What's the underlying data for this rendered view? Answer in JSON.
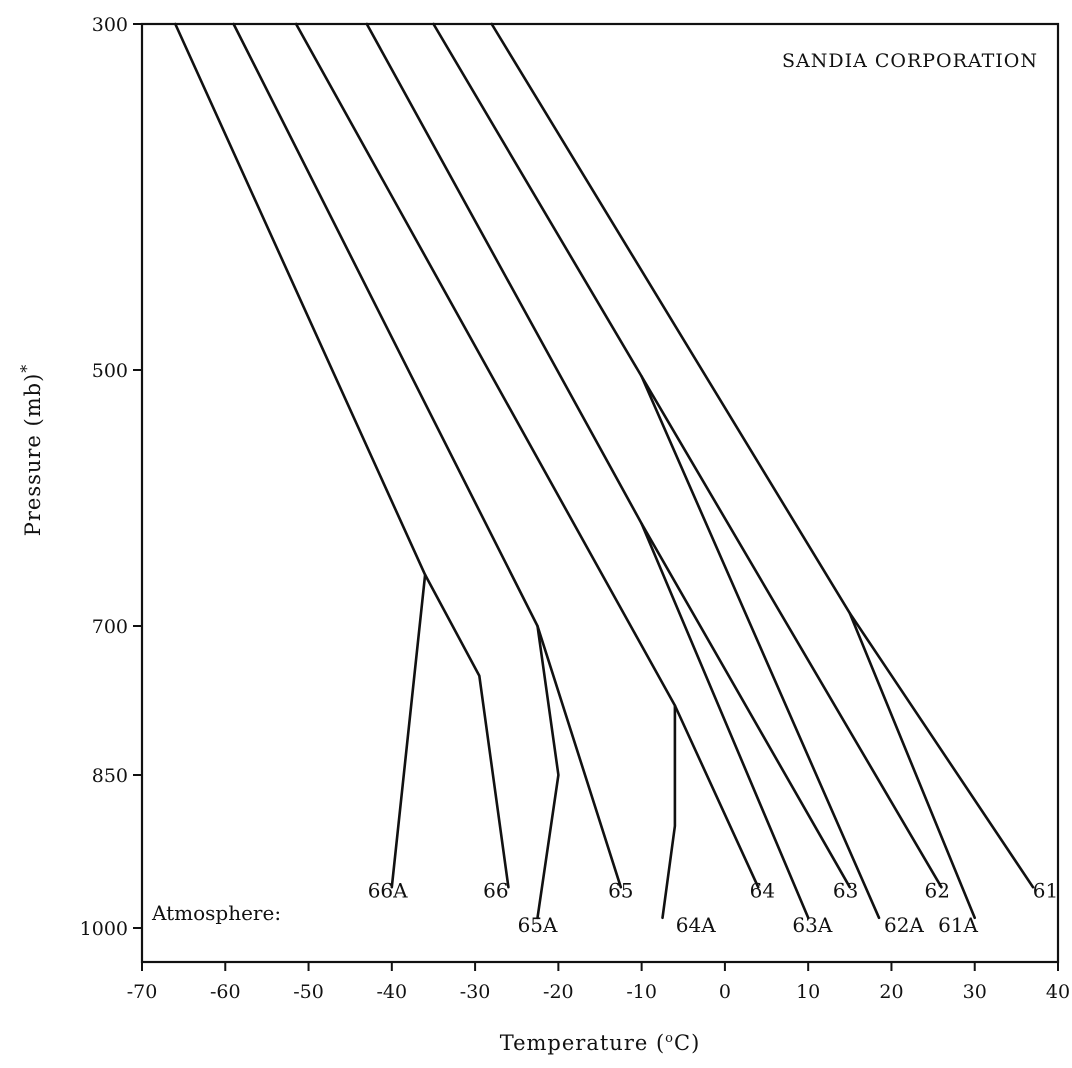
{
  "chart_data": {
    "type": "line",
    "title": "",
    "annotation": "SANDIA CORPORATION",
    "xlabel": "Temperature (°C)",
    "xlabel_parts": {
      "before": "Temperature (",
      "sup": "o",
      "after": "C)"
    },
    "ylabel": "Pressure (mb)*",
    "ylabel_parts": {
      "main": "Pressure (mb)",
      "sup": "*"
    },
    "xlim": [
      -70,
      40
    ],
    "ylim": [
      300,
      1000
    ],
    "y_inverted": true,
    "y_axis_scale": "pressure (inverted)",
    "x_ticks": [
      -70,
      -60,
      -50,
      -40,
      -30,
      -20,
      -10,
      0,
      10,
      20,
      30,
      40
    ],
    "x_tick_labels": [
      "-70",
      "-60",
      "-50",
      "-40",
      "-30",
      "-20",
      "-10",
      "0",
      "10",
      "20",
      "30",
      "40"
    ],
    "y_ticks": [
      300,
      500,
      700,
      850,
      1000
    ],
    "y_tick_labels": [
      "300",
      "500",
      "700",
      "850",
      "1000"
    ],
    "legend_prefix": "Atmosphere:",
    "grid": false,
    "series": [
      {
        "name": "61",
        "points": [
          [
            -28,
            300
          ],
          [
            15,
            690
          ],
          [
            37,
            960
          ]
        ]
      },
      {
        "name": "61A",
        "points": [
          [
            15,
            690
          ],
          [
            30,
            990
          ]
        ]
      },
      {
        "name": "62",
        "points": [
          [
            -35,
            300
          ],
          [
            -10,
            505
          ],
          [
            26,
            960
          ]
        ]
      },
      {
        "name": "62A",
        "points": [
          [
            -10,
            505
          ],
          [
            18.5,
            990
          ]
        ]
      },
      {
        "name": "63",
        "points": [
          [
            -43,
            300
          ],
          [
            -10,
            620
          ],
          [
            15,
            960
          ]
        ]
      },
      {
        "name": "63A",
        "points": [
          [
            -10,
            620
          ],
          [
            10,
            990
          ]
        ]
      },
      {
        "name": "64",
        "points": [
          [
            -51.5,
            300
          ],
          [
            -6,
            780
          ],
          [
            4,
            960
          ]
        ]
      },
      {
        "name": "64A",
        "points": [
          [
            -6,
            780
          ],
          [
            -6,
            900
          ],
          [
            -7.5,
            990
          ]
        ]
      },
      {
        "name": "65",
        "points": [
          [
            -59,
            300
          ],
          [
            -22.5,
            700
          ],
          [
            -12.5,
            960
          ]
        ]
      },
      {
        "name": "65A",
        "points": [
          [
            -22.5,
            700
          ],
          [
            -20,
            850
          ],
          [
            -22.5,
            990
          ]
        ]
      },
      {
        "name": "66",
        "points": [
          [
            -66,
            300
          ],
          [
            -36,
            660
          ],
          [
            -29.5,
            750
          ],
          [
            -26,
            960
          ]
        ]
      },
      {
        "name": "66A",
        "points": [
          [
            -36,
            660
          ],
          [
            -40,
            960
          ]
        ]
      }
    ],
    "series_labels": [
      {
        "name": "61",
        "x": 38.5,
        "y": 970
      },
      {
        "name": "61A",
        "x": 28,
        "y": 1004
      },
      {
        "name": "62",
        "x": 25.5,
        "y": 970
      },
      {
        "name": "62A",
        "x": 21.5,
        "y": 1004
      },
      {
        "name": "63",
        "x": 14.5,
        "y": 970
      },
      {
        "name": "63A",
        "x": 10.5,
        "y": 1004
      },
      {
        "name": "64",
        "x": 4.5,
        "y": 970
      },
      {
        "name": "64A",
        "x": -3.5,
        "y": 1004
      },
      {
        "name": "65",
        "x": -12.5,
        "y": 970
      },
      {
        "name": "65A",
        "x": -22.5,
        "y": 1004
      },
      {
        "name": "66",
        "x": -27.5,
        "y": 970
      },
      {
        "name": "66A",
        "x": -40.5,
        "y": 970
      }
    ]
  }
}
